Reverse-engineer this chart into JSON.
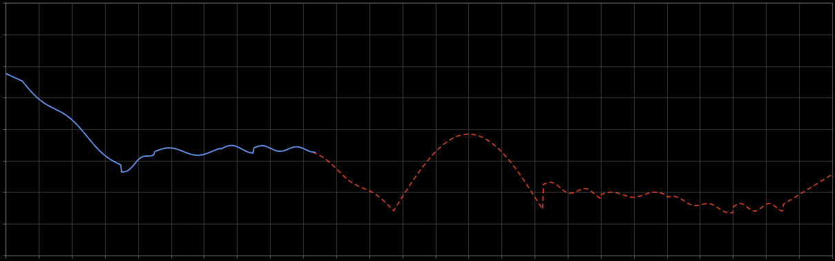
{
  "background_color": "#000000",
  "plot_bg_color": "#000000",
  "grid_color": "#555555",
  "blue_line_color": "#5599ff",
  "red_line_color": "#ff4422",
  "fig_width": 12.09,
  "fig_height": 3.78,
  "dpi": 100,
  "n_points": 1000
}
